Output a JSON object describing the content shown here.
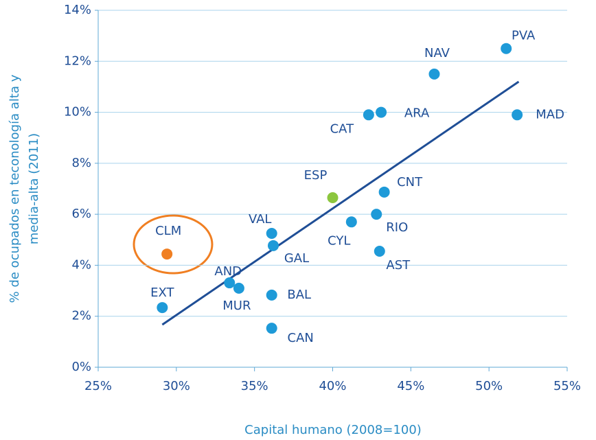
{
  "chart_data": {
    "type": "scatter",
    "xlabel": "Capital humano (2008=100)",
    "ylabel": [
      "% de ocupados  en teconología  alta y",
      "media-alta (2011)"
    ],
    "xlim": [
      25,
      55
    ],
    "ylim": [
      0,
      14
    ],
    "xticks": [
      {
        "value": 25,
        "label": "25%"
      },
      {
        "value": 30,
        "label": "30%"
      },
      {
        "value": 35,
        "label": "35%"
      },
      {
        "value": 40,
        "label": "40%"
      },
      {
        "value": 45,
        "label": "45%"
      },
      {
        "value": 50,
        "label": "50%"
      },
      {
        "value": 55,
        "label": "55%"
      }
    ],
    "yticks": [
      {
        "value": 0,
        "label": "0%"
      },
      {
        "value": 2,
        "label": "2%"
      },
      {
        "value": 4,
        "label": "4%"
      },
      {
        "value": 6,
        "label": "6%"
      },
      {
        "value": 8,
        "label": "8%"
      },
      {
        "value": 10,
        "label": "10%"
      },
      {
        "value": 12,
        "label": "12%"
      },
      {
        "value": 14,
        "label": "14%"
      }
    ],
    "grid": true,
    "points": {
      "labels": [
        "PVA",
        "NAV",
        "MAD",
        "ARA",
        "CAT",
        "ESP",
        "CNT",
        "RIO",
        "CYL",
        "AST",
        "VAL",
        "GAL",
        "CLM",
        "AND",
        "MUR",
        "BAL",
        "EXT",
        "CAN"
      ],
      "x": [
        51.1,
        46.5,
        51.8,
        43.1,
        42.3,
        40.0,
        43.3,
        42.8,
        41.2,
        43.0,
        36.1,
        36.2,
        29.4,
        33.4,
        34.0,
        36.1,
        29.1,
        36.1
      ],
      "y": [
        12.5,
        11.5,
        9.9,
        10.0,
        9.9,
        6.65,
        6.87,
        6.0,
        5.7,
        4.55,
        5.25,
        4.77,
        4.44,
        3.31,
        3.1,
        2.83,
        2.34,
        1.53
      ],
      "colors": [
        "#1e9ad8",
        "#1e9ad8",
        "#1e9ad8",
        "#1e9ad8",
        "#1e9ad8",
        "#8cc63e",
        "#1e9ad8",
        "#1e9ad8",
        "#1e9ad8",
        "#1e9ad8",
        "#1e9ad8",
        "#1e9ad8",
        "#f07f22",
        "#1e9ad8",
        "#1e9ad8",
        "#1e9ad8",
        "#1e9ad8",
        "#1e9ad8"
      ]
    },
    "trendline": {
      "x": [
        29.1,
        51.9
      ],
      "y": [
        1.67,
        11.2
      ],
      "color": "#1f4e96"
    }
  }
}
